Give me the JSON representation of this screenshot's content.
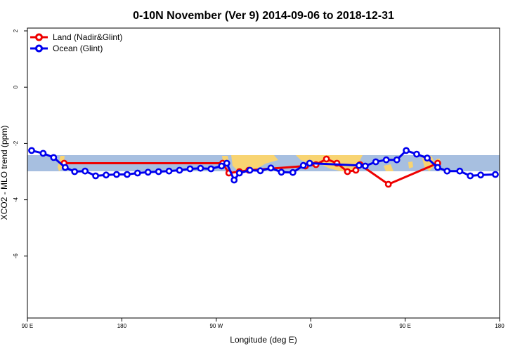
{
  "chart_data": {
    "type": "line",
    "title": "0-10N November (Ver 9)   2014-09-06 to 2018-12-31",
    "xlabel": "Longitude (deg E)",
    "ylabel": "XCO2 - MLO trend (ppm)",
    "x_tick_values": [
      90,
      180,
      270,
      360,
      450,
      540
    ],
    "x_tick_labels": [
      "90 E",
      "180",
      "90 W",
      "0",
      "90 E",
      "180"
    ],
    "y_tick_values": [
      2,
      0,
      -2,
      -4,
      -6
    ],
    "y_tick_labels": [
      "2",
      "0",
      "-2",
      "-4",
      "-6"
    ],
    "xlim": [
      90,
      540
    ],
    "ylim": [
      -8.2,
      2.1
    ],
    "legend": {
      "position": "top-left"
    },
    "series": [
      {
        "name": "Land (Nadir&Glint)",
        "color": "#ee0000",
        "points": [
          [
            125,
            -2.7
          ],
          [
            276,
            -2.7
          ],
          [
            282,
            -3.05
          ],
          [
            292,
            -3.0
          ],
          [
            301,
            -2.95
          ],
          [
            355,
            -2.8
          ],
          [
            365,
            -2.75
          ],
          [
            375,
            -2.55
          ],
          [
            385,
            -2.7
          ],
          [
            395,
            -3.0
          ],
          [
            403,
            -2.95
          ],
          [
            407,
            -2.75
          ],
          [
            434,
            -3.45
          ],
          [
            481,
            -2.7
          ]
        ]
      },
      {
        "name": "Ocean (Glint)",
        "color": "#0000ee",
        "points": [
          [
            94,
            -2.25
          ],
          [
            105,
            -2.35
          ],
          [
            115,
            -2.5
          ],
          [
            126,
            -2.85
          ],
          [
            135,
            -3.0
          ],
          [
            145,
            -2.98
          ],
          [
            155,
            -3.15
          ],
          [
            165,
            -3.12
          ],
          [
            175,
            -3.1
          ],
          [
            185,
            -3.1
          ],
          [
            195,
            -3.05
          ],
          [
            205,
            -3.02
          ],
          [
            215,
            -3.0
          ],
          [
            225,
            -2.98
          ],
          [
            235,
            -2.95
          ],
          [
            245,
            -2.9
          ],
          [
            255,
            -2.88
          ],
          [
            265,
            -2.9
          ],
          [
            275,
            -2.8
          ],
          [
            280,
            -2.7
          ],
          [
            287,
            -3.3
          ],
          [
            292,
            -3.05
          ],
          [
            302,
            -2.95
          ],
          [
            312,
            -2.97
          ],
          [
            322,
            -2.87
          ],
          [
            332,
            -3.02
          ],
          [
            343,
            -3.03
          ],
          [
            353,
            -2.78
          ],
          [
            359,
            -2.7
          ],
          [
            406,
            -2.78
          ],
          [
            412,
            -2.8
          ],
          [
            422,
            -2.65
          ],
          [
            432,
            -2.58
          ],
          [
            442,
            -2.58
          ],
          [
            451,
            -2.25
          ],
          [
            461,
            -2.38
          ],
          [
            471,
            -2.52
          ],
          [
            481,
            -2.85
          ],
          [
            490,
            -2.98
          ],
          [
            502,
            -2.98
          ],
          [
            512,
            -3.15
          ],
          [
            522,
            -3.12
          ],
          [
            536,
            -3.1
          ]
        ]
      }
    ]
  }
}
